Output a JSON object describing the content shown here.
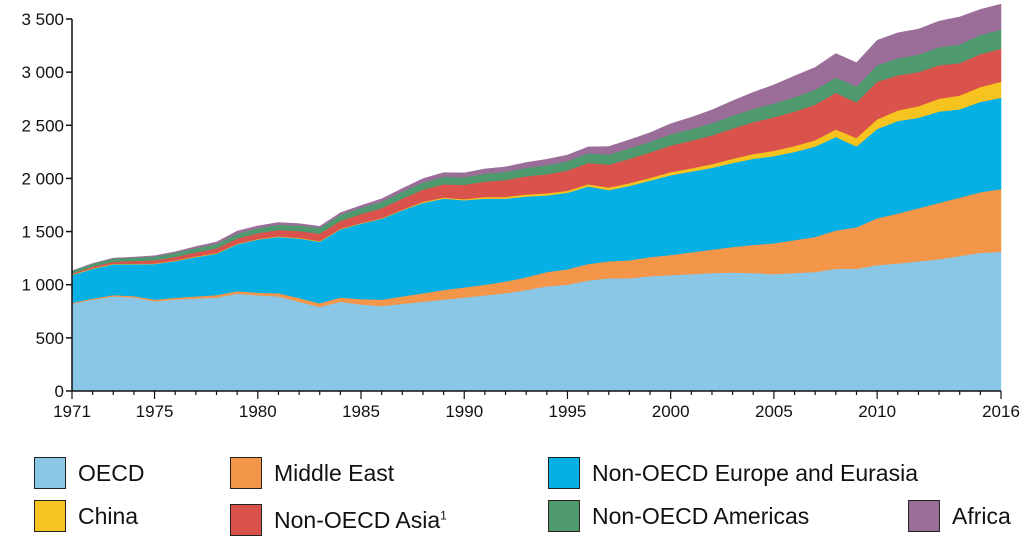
{
  "chart_data": {
    "type": "area",
    "stacked": true,
    "title": "",
    "xlabel": "",
    "ylabel": "",
    "ylim": [
      0,
      3500
    ],
    "xlim": [
      1971,
      2016
    ],
    "grid": false,
    "legend_position": "bottom",
    "x": [
      1971,
      1972,
      1973,
      1974,
      1975,
      1976,
      1977,
      1978,
      1979,
      1980,
      1981,
      1982,
      1983,
      1984,
      1985,
      1986,
      1987,
      1988,
      1989,
      1990,
      1991,
      1992,
      1993,
      1994,
      1995,
      1996,
      1997,
      1998,
      1999,
      2000,
      2001,
      2002,
      2003,
      2004,
      2005,
      2006,
      2007,
      2008,
      2009,
      2010,
      2011,
      2012,
      2013,
      2014,
      2015,
      2016
    ],
    "x_ticks": [
      1971,
      1975,
      1980,
      1985,
      1990,
      1995,
      2000,
      2005,
      2010,
      2016
    ],
    "x_tick_labels": [
      "1971",
      "1975",
      "1980",
      "1985",
      "1990",
      "1995",
      "2000",
      "2005",
      "2010",
      "2016"
    ],
    "y_ticks": [
      0,
      500,
      1000,
      1500,
      2000,
      2500,
      3000,
      3500
    ],
    "y_tick_labels": [
      "0",
      "500",
      "1 000",
      "1 500",
      "2 000",
      "2 500",
      "3 000",
      "3 500"
    ],
    "series": [
      {
        "name": "OECD",
        "color": "#8AC6E6",
        "values": [
          820,
          860,
          890,
          880,
          845,
          860,
          870,
          880,
          915,
          900,
          890,
          840,
          790,
          840,
          815,
          800,
          820,
          840,
          860,
          880,
          900,
          920,
          950,
          985,
          1000,
          1040,
          1060,
          1060,
          1080,
          1090,
          1100,
          1110,
          1115,
          1110,
          1100,
          1110,
          1120,
          1150,
          1150,
          1185,
          1200,
          1220,
          1240,
          1270,
          1300,
          1310
        ]
      },
      {
        "name": "Middle East",
        "color": "#F4964A",
        "values": [
          10,
          10,
          12,
          13,
          15,
          17,
          20,
          22,
          25,
          25,
          30,
          35,
          35,
          40,
          50,
          60,
          70,
          80,
          90,
          95,
          100,
          110,
          120,
          135,
          145,
          155,
          160,
          170,
          180,
          190,
          205,
          220,
          240,
          265,
          290,
          310,
          330,
          360,
          390,
          440,
          470,
          500,
          530,
          550,
          570,
          590
        ]
      },
      {
        "name": "Non-OECD Europe and Eurasia",
        "color": "#06B0E4",
        "values": [
          260,
          280,
          290,
          300,
          335,
          345,
          370,
          390,
          440,
          500,
          530,
          560,
          580,
          640,
          710,
          760,
          810,
          850,
          860,
          820,
          810,
          780,
          760,
          720,
          720,
          730,
          670,
          700,
          720,
          750,
          760,
          770,
          790,
          810,
          820,
          830,
          850,
          880,
          760,
          840,
          870,
          850,
          860,
          830,
          850,
          860
        ]
      },
      {
        "name": "China",
        "color": "#F7C31E",
        "values": [
          5,
          5,
          5,
          5,
          5,
          5,
          5,
          5,
          5,
          5,
          5,
          5,
          5,
          5,
          5,
          5,
          5,
          10,
          10,
          10,
          15,
          15,
          20,
          20,
          20,
          20,
          25,
          25,
          25,
          30,
          30,
          35,
          40,
          45,
          50,
          55,
          60,
          70,
          80,
          90,
          100,
          110,
          120,
          130,
          140,
          150
        ]
      },
      {
        "name": "Non-OECD Asia¹",
        "color": "#D9534C",
        "values": [
          10,
          15,
          20,
          25,
          30,
          35,
          40,
          45,
          50,
          55,
          60,
          65,
          70,
          75,
          85,
          95,
          105,
          115,
          125,
          135,
          145,
          160,
          170,
          180,
          190,
          200,
          215,
          230,
          240,
          250,
          260,
          270,
          285,
          300,
          315,
          325,
          335,
          345,
          335,
          355,
          330,
          320,
          315,
          305,
          310,
          310
        ]
      },
      {
        "name": "Non-OECD Americas",
        "color": "#4E9A6E",
        "values": [
          25,
          28,
          30,
          32,
          35,
          38,
          40,
          42,
          45,
          48,
          50,
          52,
          55,
          58,
          60,
          63,
          65,
          68,
          70,
          72,
          75,
          78,
          80,
          85,
          88,
          92,
          95,
          98,
          100,
          105,
          110,
          115,
          120,
          125,
          130,
          135,
          140,
          145,
          150,
          155,
          160,
          165,
          170,
          175,
          180,
          180
        ]
      },
      {
        "name": "Africa",
        "color": "#9B6E99",
        "values": [
          0,
          2,
          3,
          5,
          8,
          10,
          15,
          18,
          25,
          20,
          20,
          18,
          15,
          20,
          20,
          25,
          30,
          35,
          40,
          40,
          45,
          45,
          50,
          55,
          57,
          60,
          75,
          80,
          85,
          100,
          110,
          125,
          140,
          155,
          175,
          200,
          210,
          225,
          225,
          235,
          240,
          240,
          245,
          260,
          240,
          240
        ]
      }
    ]
  }
}
